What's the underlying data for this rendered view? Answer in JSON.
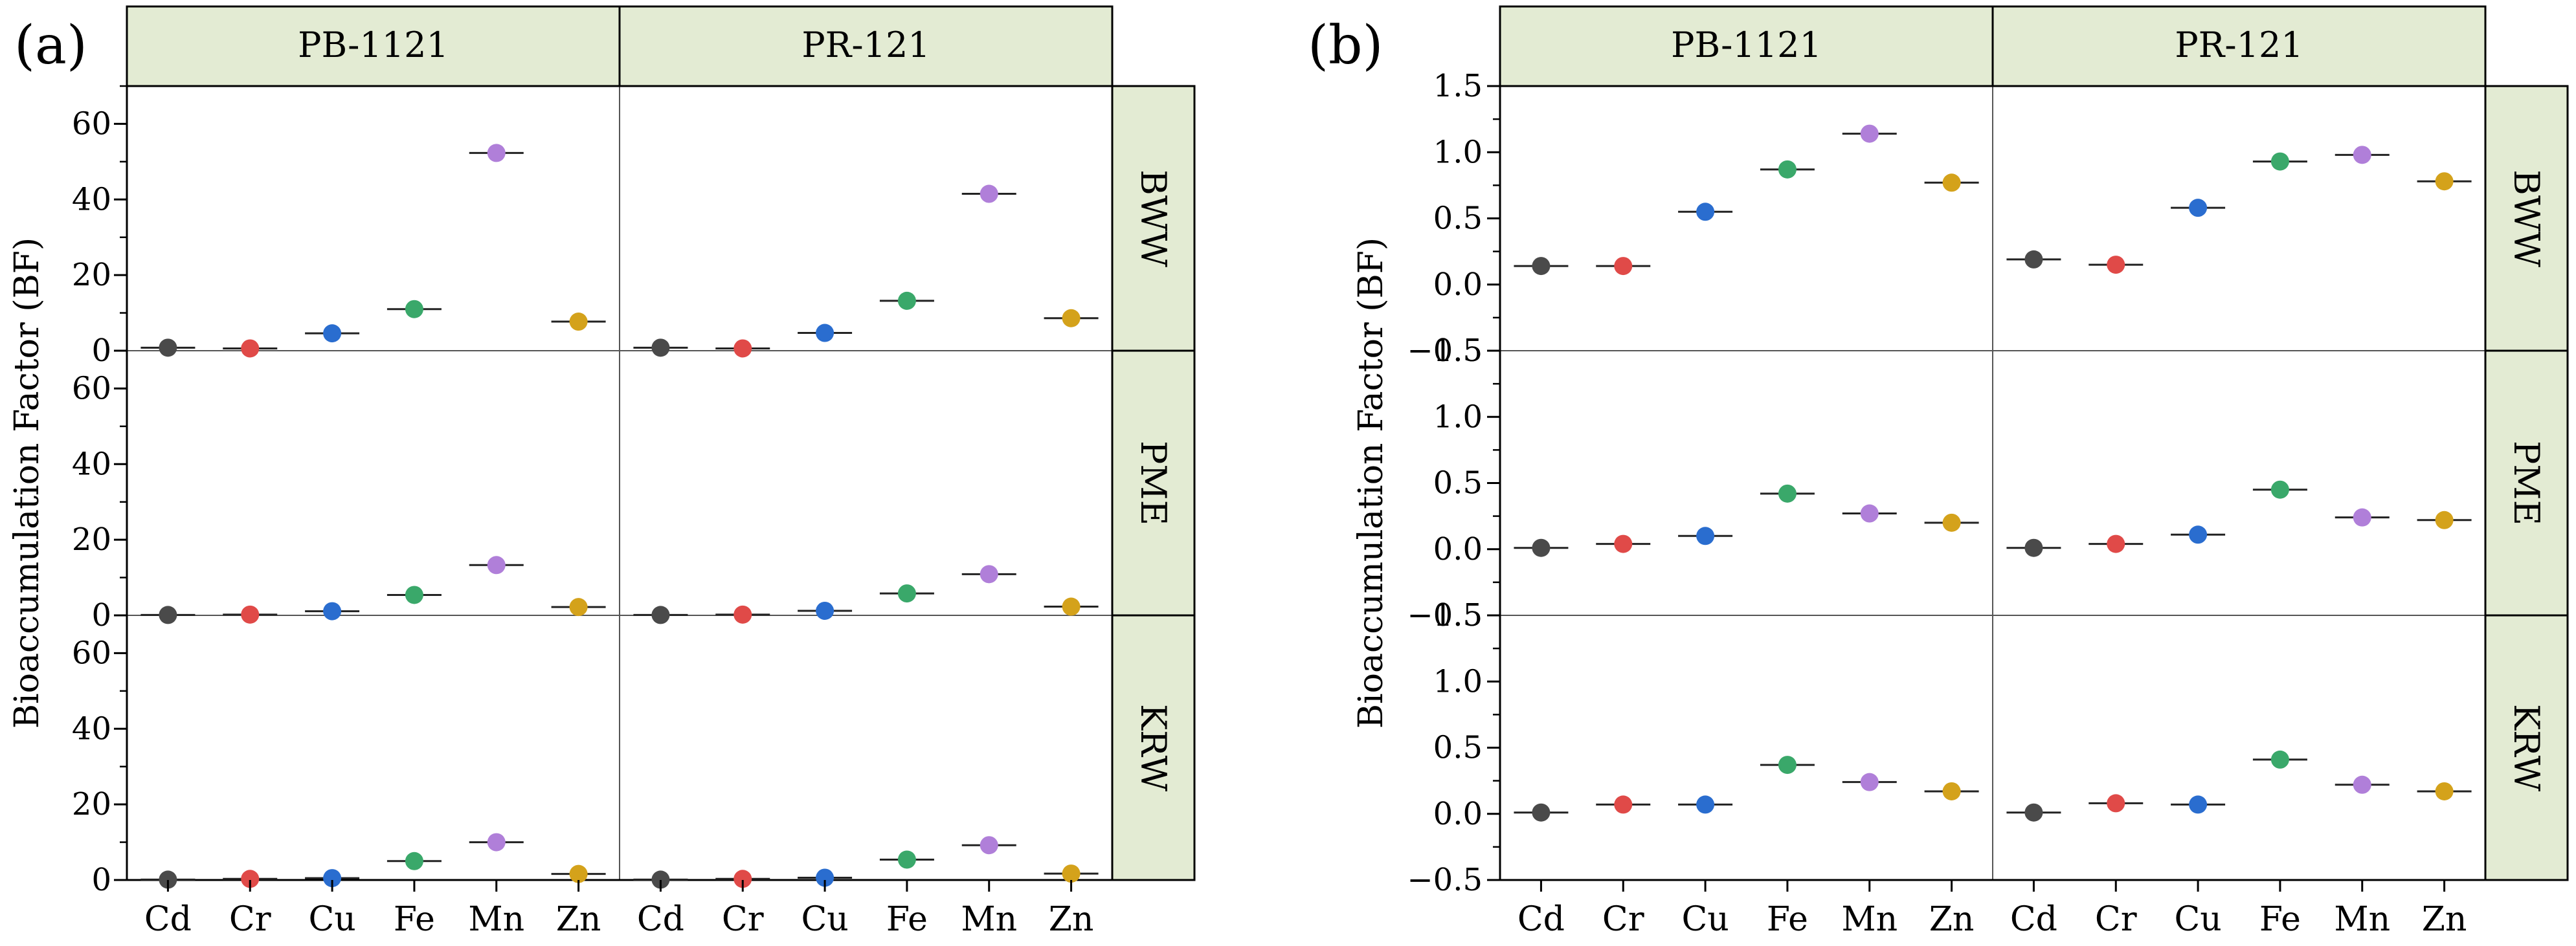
{
  "figure": {
    "panel_labels": [
      "(a)",
      "(b)"
    ]
  },
  "colors": {
    "Cd": "#4a4a4a",
    "Cr": "#e04a48",
    "Cu": "#2a6dcf",
    "Fe": "#3aa86a",
    "Mn": "#b07fd9",
    "Zn": "#d4a21b",
    "strip_fill": "#e3ebd3",
    "frame": "#000000",
    "divider": "#555555"
  },
  "chart_data": [
    {
      "type": "scatter",
      "panel": "(a)",
      "ylabel": "Bioaccumulation Factor (BF)",
      "columns": [
        "PB-1121",
        "PR-121"
      ],
      "rows": [
        "BWW",
        "PME",
        "KRW"
      ],
      "categories": [
        "Cd",
        "Cr",
        "Cu",
        "Fe",
        "Mn",
        "Zn"
      ],
      "ylim": [
        0,
        70
      ],
      "yticks": [
        0,
        20,
        40,
        60
      ],
      "ytick_labels": [
        "0",
        "20",
        "40",
        "60"
      ],
      "values": {
        "BWW": {
          "PB-1121": [
            0.8,
            0.6,
            4.6,
            11.0,
            52.3,
            7.7
          ],
          "PR-121": [
            0.8,
            0.6,
            4.7,
            13.2,
            41.5,
            8.6
          ]
        },
        "PME": {
          "PB-1121": [
            0.1,
            0.2,
            1.1,
            5.4,
            13.3,
            2.2
          ],
          "PR-121": [
            0.1,
            0.2,
            1.2,
            5.8,
            10.9,
            2.3
          ]
        },
        "KRW": {
          "PB-1121": [
            0.1,
            0.3,
            0.5,
            5.0,
            10.0,
            1.6
          ],
          "PR-121": [
            0.1,
            0.3,
            0.6,
            5.4,
            9.2,
            1.7
          ]
        }
      }
    },
    {
      "type": "scatter",
      "panel": "(b)",
      "ylabel": "Bioaccumulation Factor (BF)",
      "columns": [
        "PB-1121",
        "PR-121"
      ],
      "rows": [
        "BWW",
        "PME",
        "KRW"
      ],
      "categories": [
        "Cd",
        "Cr",
        "Cu",
        "Fe",
        "Mn",
        "Zn"
      ],
      "ylim": [
        -0.5,
        1.5
      ],
      "yticks": [
        -0.5,
        0.0,
        0.5,
        1.0,
        1.5
      ],
      "ytick_labels": [
        "−0.5",
        "0.0",
        "0.5",
        "1.0",
        "1.5"
      ],
      "values": {
        "BWW": {
          "PB-1121": [
            0.14,
            0.14,
            0.55,
            0.87,
            1.14,
            0.77
          ],
          "PR-121": [
            0.19,
            0.15,
            0.58,
            0.93,
            0.98,
            0.78
          ]
        },
        "PME": {
          "PB-1121": [
            0.01,
            0.04,
            0.1,
            0.42,
            0.27,
            0.2
          ],
          "PR-121": [
            0.01,
            0.04,
            0.11,
            0.45,
            0.24,
            0.22
          ]
        },
        "KRW": {
          "PB-1121": [
            0.01,
            0.07,
            0.07,
            0.37,
            0.24,
            0.17
          ],
          "PR-121": [
            0.01,
            0.08,
            0.07,
            0.41,
            0.22,
            0.17
          ]
        }
      }
    }
  ]
}
